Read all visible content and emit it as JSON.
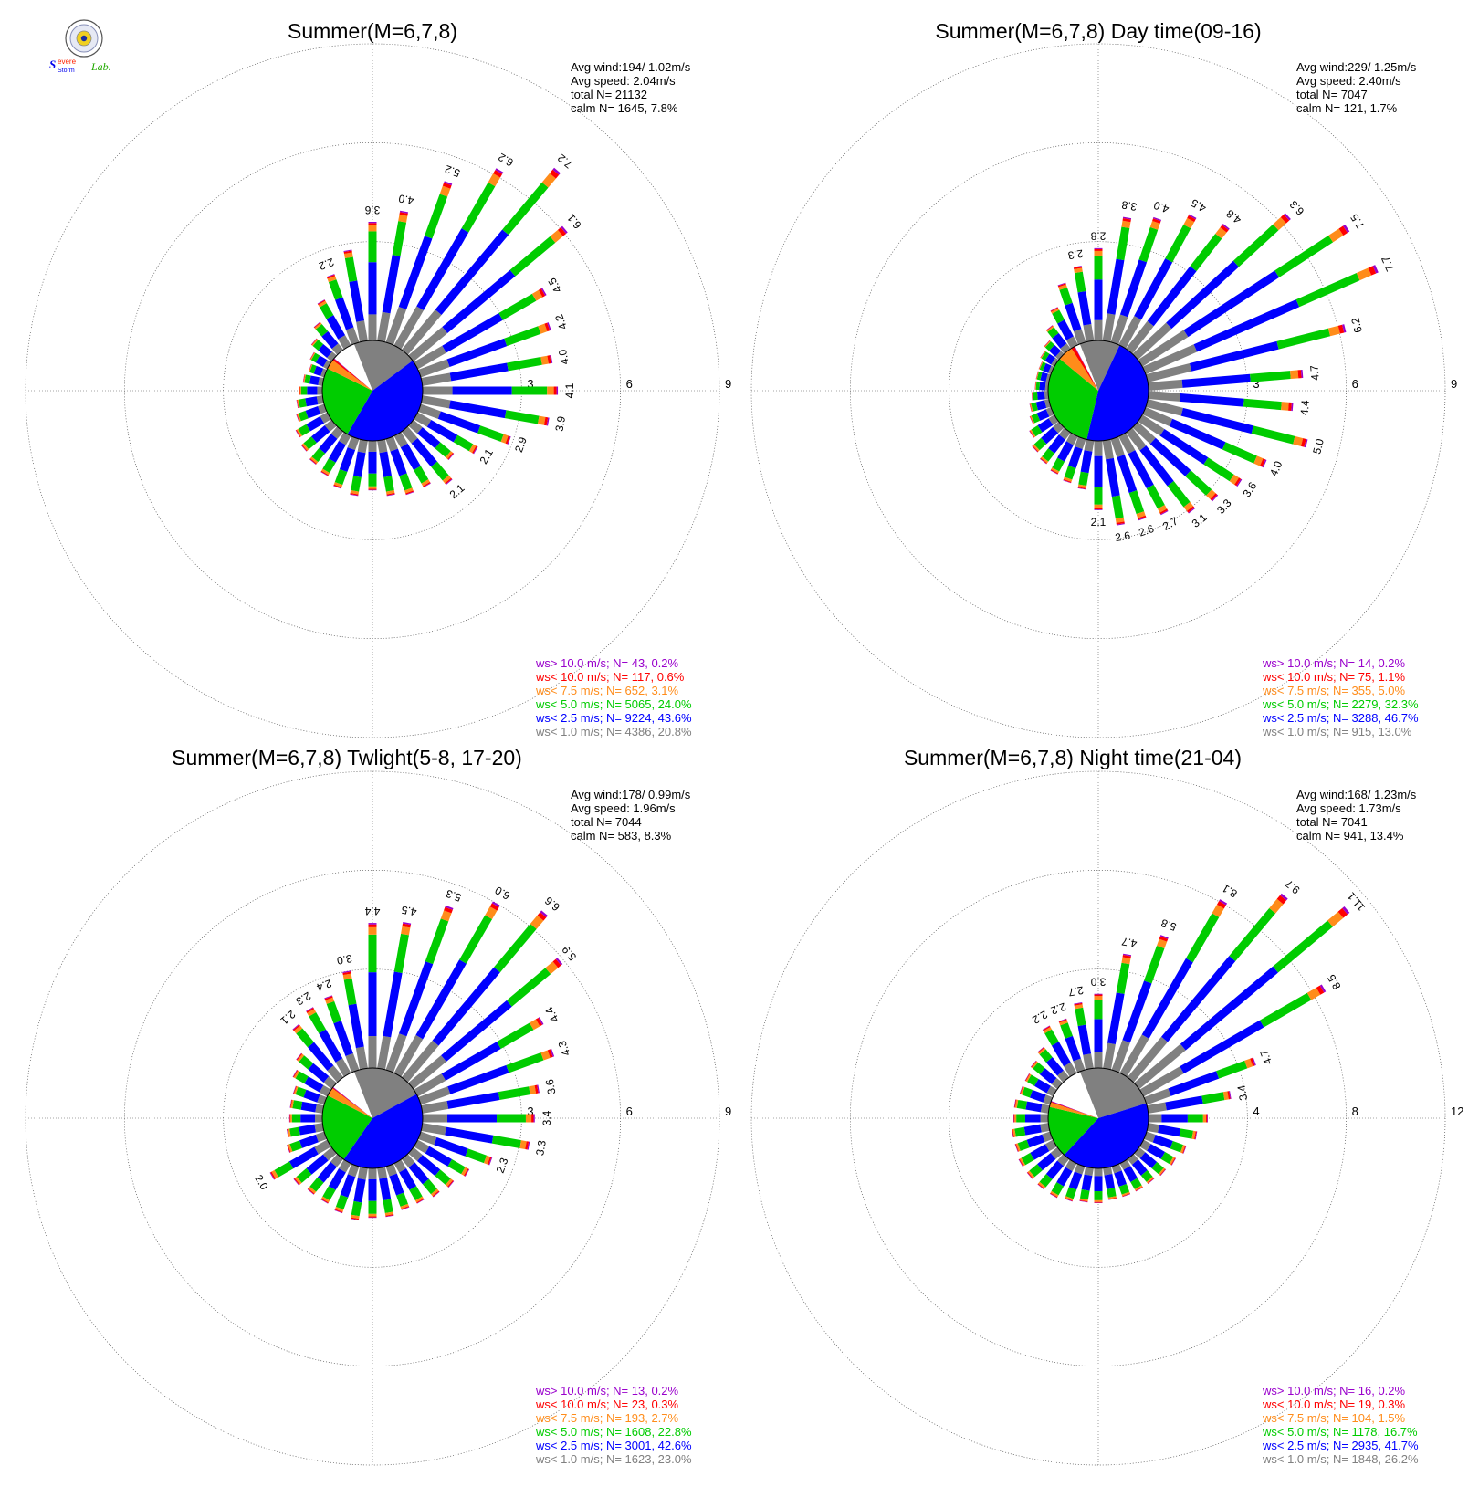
{
  "colors": {
    "gt10": "#9900cc",
    "lt10": "#ff0000",
    "lt7_5": "#ff8c1a",
    "lt5": "#00cc00",
    "lt2_5": "#0000ff",
    "lt1": "#808080",
    "calm": "#ffffff"
  },
  "logo": {
    "text_severe": "Severe",
    "text_storm": "Storm",
    "text_lab": "Lab."
  },
  "chart_data": [
    {
      "type": "polar-bar",
      "title": "Summer(M=6,7,8)",
      "stats": [
        "Avg wind:194/ 1.02m/s",
        "Avg speed: 2.04m/s",
        "total N=      21132",
        "calm N=   1645,   7.8%"
      ],
      "rings": [
        3,
        6,
        9
      ],
      "ring_labels": [
        "3",
        "6",
        "9"
      ],
      "legend": [
        {
          "text": "ws> 10.0 m/s; N=     43,  0.2%",
          "color": "#9900cc"
        },
        {
          "text": "ws< 10.0 m/s; N=   117,  0.6%",
          "color": "#ff0000"
        },
        {
          "text": "ws<  7.5 m/s; N=   652,  3.1%",
          "color": "#ff8c1a"
        },
        {
          "text": "ws<  5.0 m/s; N=  5065, 24.0%",
          "color": "#00cc00"
        },
        {
          "text": "ws<  2.5 m/s; N=  9224, 43.6%",
          "color": "#0000ff"
        },
        {
          "text": "ws<  1.0 m/s; N=  4386, 20.8%",
          "color": "#808080"
        }
      ],
      "pie": [
        20.8,
        43.6,
        24.0,
        3.1,
        0.6,
        0.2,
        7.8
      ],
      "totals": [
        1.5,
        1.7,
        1.6,
        1.4,
        1.3,
        1.2,
        1.1,
        0.9,
        0.8,
        0.7,
        0.6,
        0.5,
        0.6,
        0.8,
        1.1,
        1.6,
        2.2,
        2.8,
        3.6,
        4.0,
        5.2,
        6.2,
        7.2,
        6.1,
        4.5,
        4.2,
        4.0,
        4.1,
        3.9,
        2.9,
        2.1,
        1.6,
        2.1,
        1.8,
        1.8,
        1.7
      ],
      "shown_labels": {
        "16": "2.2",
        "18": "3.6",
        "19": "4.0",
        "20": "5.2",
        "21": "6.2",
        "22": "7.2",
        "23": "6.1",
        "24": "4.5",
        "25": "4.2",
        "26": "4.0",
        "27": "4.1",
        "28": "3.9",
        "29": "2.9",
        "30": "2.1",
        "32": "2.1"
      }
    },
    {
      "type": "polar-bar",
      "title": "Summer(M=6,7,8) Day time(09-16)",
      "stats": [
        "Avg wind:229/ 1.25m/s",
        "Avg speed: 2.40m/s",
        "total N=        7047",
        "calm N=    121,   1.7%"
      ],
      "rings": [
        3,
        6,
        9
      ],
      "ring_labels": [
        "3",
        "6",
        "9"
      ],
      "legend": [
        {
          "text": "ws> 10.0 m/s; N=     14,  0.2%",
          "color": "#9900cc"
        },
        {
          "text": "ws< 10.0 m/s; N=     75,  1.1%",
          "color": "#ff0000"
        },
        {
          "text": "ws<  7.5 m/s; N=   355,  5.0%",
          "color": "#ff8c1a"
        },
        {
          "text": "ws<  5.0 m/s; N=  2279, 32.3%",
          "color": "#00cc00"
        },
        {
          "text": "ws<  2.5 m/s; N=  3288, 46.7%",
          "color": "#0000ff"
        },
        {
          "text": "ws<  1.0 m/s; N=   915, 13.0%",
          "color": "#808080"
        }
      ],
      "pie": [
        13.0,
        46.7,
        32.3,
        5.0,
        1.1,
        0.2,
        1.7
      ],
      "totals": [
        2.1,
        1.5,
        1.4,
        1.3,
        1.2,
        1.1,
        0.9,
        0.7,
        0.6,
        0.5,
        0.4,
        0.4,
        0.4,
        0.5,
        0.6,
        0.9,
        1.3,
        1.9,
        2.3,
        2.8,
        3.8,
        4.0,
        4.5,
        4.8,
        6.3,
        7.5,
        7.7,
        6.2,
        4.7,
        4.4,
        5.0,
        4.0,
        3.6,
        3.3,
        3.1,
        2.7,
        2.6,
        2.6
      ],
      "shown_labels": {
        "18": "2.3",
        "19": "2.8",
        "20": "3.8",
        "21": "4.0",
        "22": "4.5",
        "23": "4.8",
        "24": "6.3",
        "25": "7.5",
        "26": "7.7",
        "27": "6.2",
        "28": "4.7",
        "29": "4.4",
        "30": "5.0",
        "31": "4.0",
        "32": "3.6",
        "33": "3.3",
        "34": "3.1",
        "35": "2.7",
        "36": "2.6",
        "37": "2.6",
        "0": "2.1"
      }
    },
    {
      "type": "polar-bar",
      "title": "Summer(M=6,7,8) Twlight(5-8, 17-20)",
      "stats": [
        "Avg wind:178/ 0.99m/s",
        "Avg speed: 1.96m/s",
        "total N=        7044",
        "calm N=    583,   8.3%"
      ],
      "rings": [
        3,
        6,
        9
      ],
      "ring_labels": [
        "3",
        "6",
        "9"
      ],
      "legend": [
        {
          "text": "ws> 10.0 m/s; N=     13,  0.2%",
          "color": "#9900cc"
        },
        {
          "text": "ws< 10.0 m/s; N=     23,  0.3%",
          "color": "#ff0000"
        },
        {
          "text": "ws<  7.5 m/s; N=   193,  2.7%",
          "color": "#ff8c1a"
        },
        {
          "text": "ws<  5.0 m/s; N=  1608, 22.8%",
          "color": "#00cc00"
        },
        {
          "text": "ws<  2.5 m/s; N=  3001, 42.6%",
          "color": "#0000ff"
        },
        {
          "text": "ws<  1.0 m/s; N=  1623, 23.0%",
          "color": "#808080"
        }
      ],
      "pie": [
        23.0,
        42.6,
        22.8,
        2.7,
        0.3,
        0.2,
        8.3
      ],
      "totals": [
        1.5,
        1.6,
        1.5,
        1.4,
        1.4,
        1.5,
        2.0,
        1.2,
        1.1,
        1.0,
        1.0,
        1.0,
        1.2,
        1.4,
        2.1,
        2.3,
        2.4,
        3.0,
        4.4,
        4.5,
        5.3,
        6.0,
        6.6,
        5.9,
        4.4,
        4.3,
        3.6,
        3.4,
        3.3,
        2.3,
        1.8,
        1.6,
        1.5,
        1.4,
        1.4,
        1.5
      ],
      "shown_labels": {
        "14": "2.1",
        "15": "2.3",
        "16": "2.4",
        "17": "3.0",
        "18": "4.4",
        "19": "4.5",
        "20": "5.3",
        "21": "6.0",
        "22": "6.6",
        "23": "5.9",
        "24": "4.4",
        "25": "4.3",
        "26": "3.6",
        "27": "3.4",
        "28": "3.3",
        "29": "2.3",
        "6": "2.0"
      }
    },
    {
      "type": "polar-bar",
      "title": "Summer(M=6,7,8) Night time(21-04)",
      "stats": [
        "Avg wind:168/ 1.23m/s",
        "Avg speed: 1.73m/s",
        "total N=        7041",
        "calm N=    941,  13.4%"
      ],
      "rings": [
        4,
        8,
        12
      ],
      "ring_labels": [
        "4",
        "8",
        "12"
      ],
      "legend": [
        {
          "text": "ws> 10.0 m/s; N=     16,  0.2%",
          "color": "#9900cc"
        },
        {
          "text": "ws< 10.0 m/s; N=     19,  0.3%",
          "color": "#ff0000"
        },
        {
          "text": "ws<  7.5 m/s; N=   104,  1.5%",
          "color": "#ff8c1a"
        },
        {
          "text": "ws<  5.0 m/s; N=  1178, 16.7%",
          "color": "#00cc00"
        },
        {
          "text": "ws<  2.5 m/s; N=  2935, 41.7%",
          "color": "#0000ff"
        },
        {
          "text": "ws<  1.0 m/s; N=  1848, 26.2%",
          "color": "#808080"
        }
      ],
      "pie": [
        26.2,
        41.7,
        16.7,
        1.5,
        0.3,
        0.2,
        13.4
      ],
      "totals": [
        1.4,
        1.4,
        1.5,
        1.6,
        1.6,
        1.6,
        1.6,
        1.5,
        1.5,
        1.4,
        1.4,
        1.3,
        1.3,
        1.4,
        1.6,
        2.2,
        2.2,
        2.7,
        3.0,
        4.7,
        5.8,
        8.1,
        9.7,
        11.1,
        8.5,
        4.7,
        3.4,
        2.4,
        2.0,
        1.7,
        1.5,
        1.4,
        1.3,
        1.3,
        1.3,
        1.3
      ],
      "shown_labels": {
        "15": "2.2",
        "16": "2.2",
        "17": "2.7",
        "18": "3.0",
        "19": "4.7",
        "20": "5.8",
        "21": "8.1",
        "22": "9.7",
        "23": "11.1",
        "24": "8.5",
        "25": "4.7",
        "26": "3.4"
      }
    }
  ]
}
